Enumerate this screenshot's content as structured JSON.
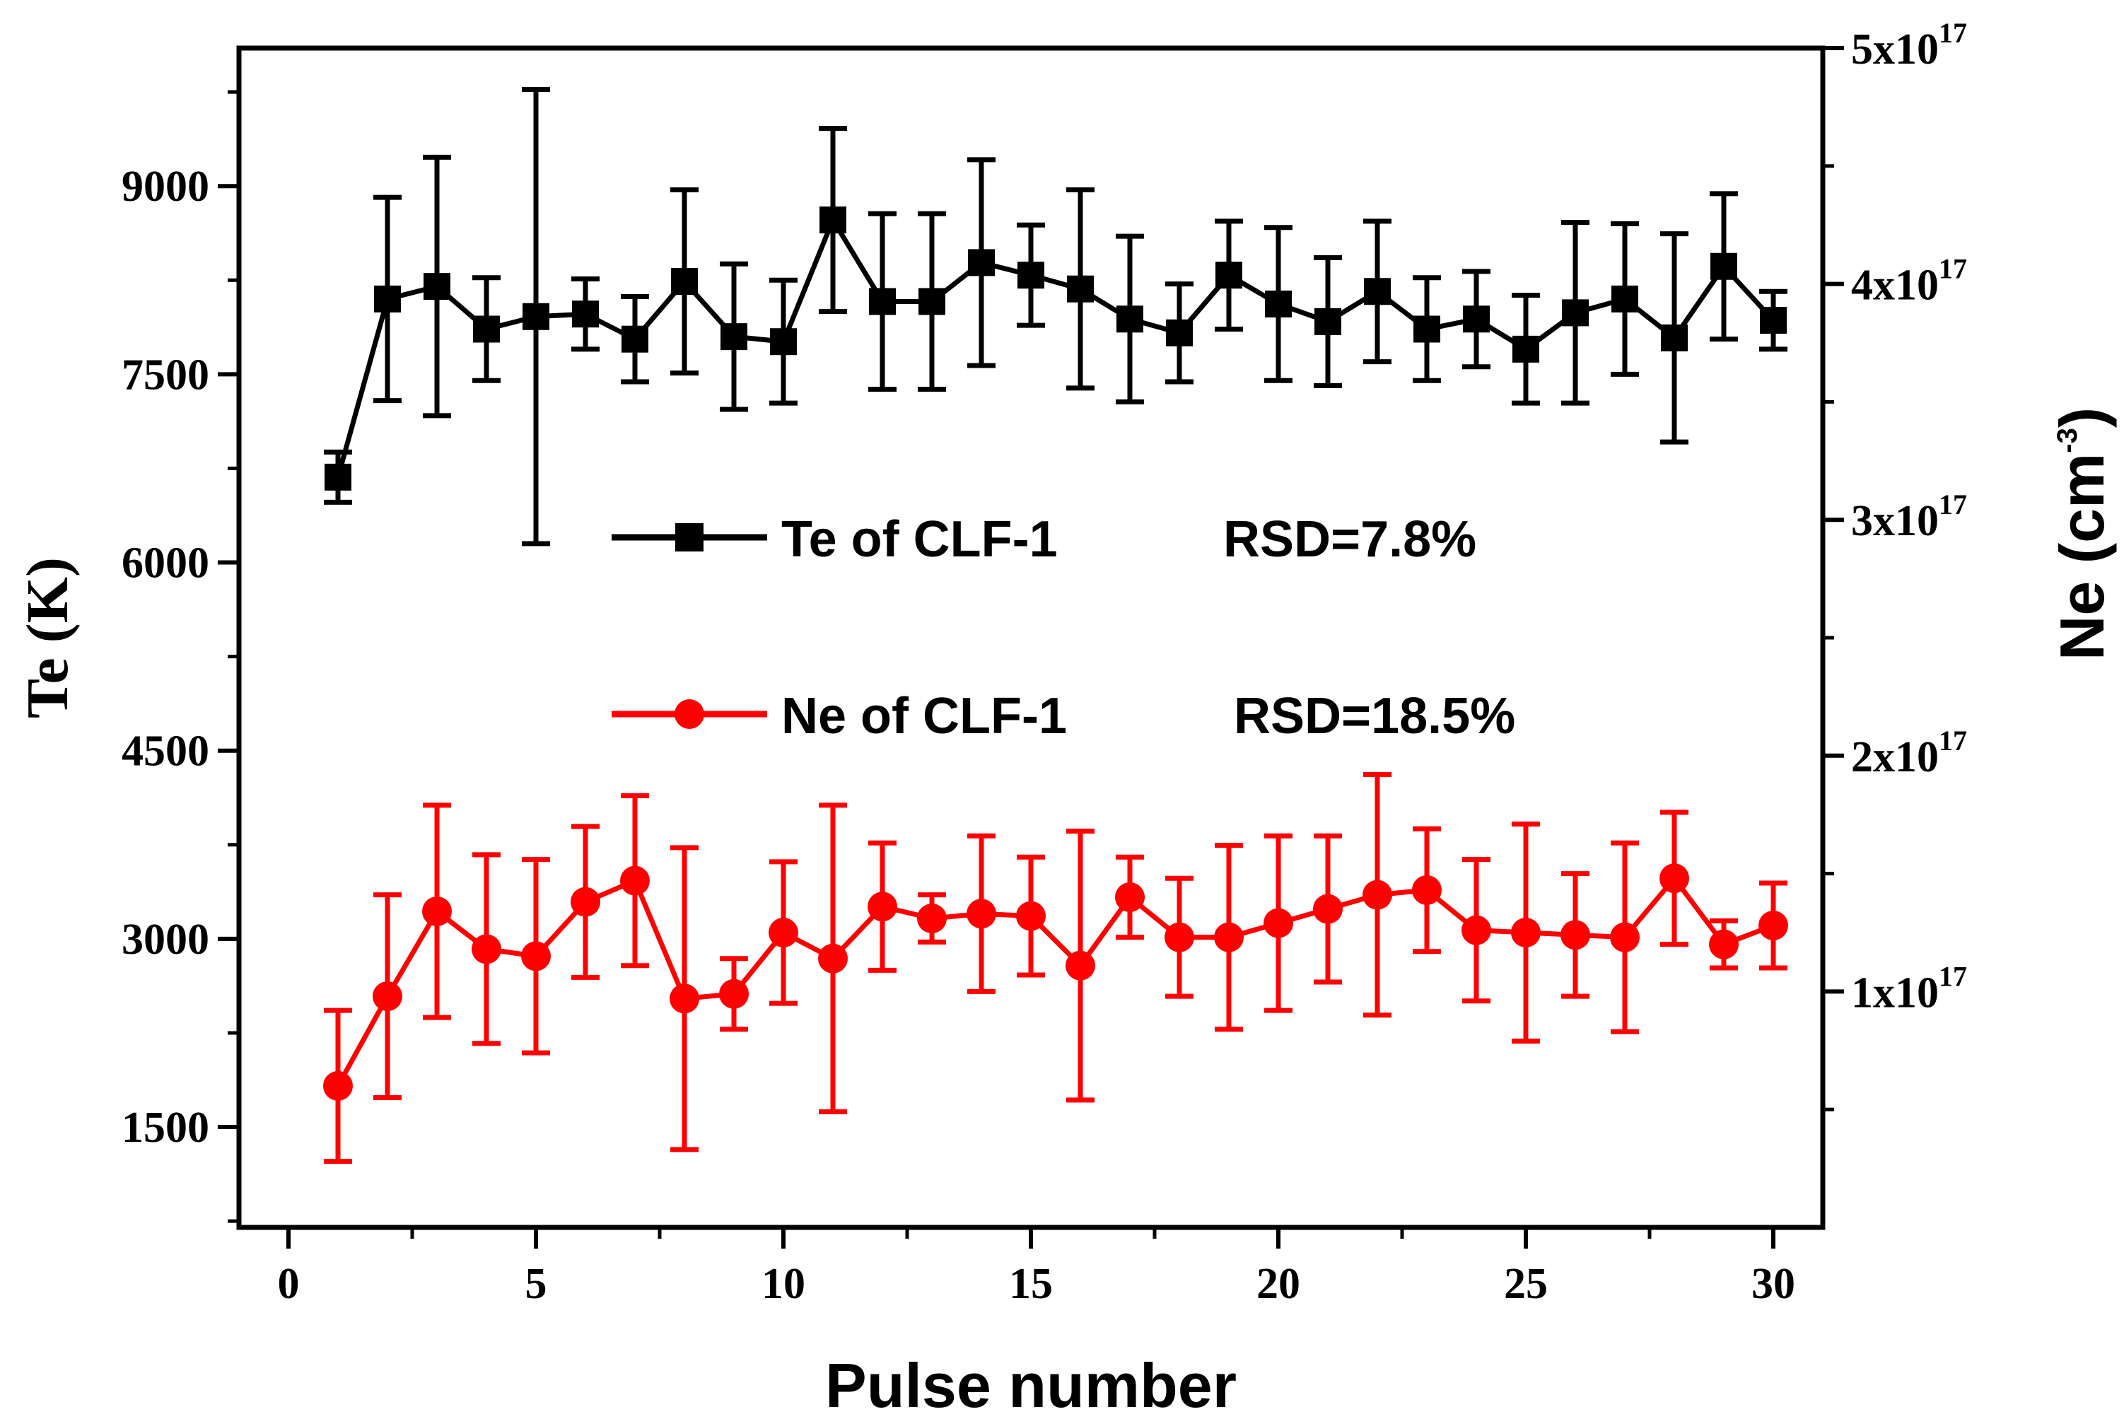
{
  "chart_data": {
    "type": "line",
    "x": [
      1,
      2,
      3,
      4,
      5,
      6,
      7,
      8,
      9,
      10,
      11,
      12,
      13,
      14,
      15,
      16,
      17,
      18,
      19,
      20,
      21,
      22,
      23,
      24,
      25,
      26,
      27,
      28,
      29,
      30
    ],
    "xlabel": "Pulse number",
    "xlim": [
      -1,
      31
    ],
    "xticks": [
      "0",
      "5",
      "10",
      "15",
      "20",
      "25",
      "30"
    ],
    "xtick_values": [
      0,
      5,
      10,
      15,
      20,
      25,
      30
    ],
    "ylabel_left": "Te (K)",
    "ylim_left": [
      700,
      10100
    ],
    "yticks_left": [
      "1500",
      "3000",
      "4500",
      "6000",
      "7500",
      "9000"
    ],
    "ytick_values_left": [
      1500,
      3000,
      4500,
      6000,
      7500,
      9000
    ],
    "ylabel_right": "Ne (cm",
    "ylabel_right_sup": "-3",
    "ylabel_right_close": ")",
    "ylim_right": [
      0,
      5e+17
    ],
    "yticks_right": [
      {
        "mantissa": "1x10",
        "exp": "17",
        "value": 1e+17
      },
      {
        "mantissa": "2x10",
        "exp": "17",
        "value": 2e+17
      },
      {
        "mantissa": "3x10",
        "exp": "17",
        "value": 3e+17
      },
      {
        "mantissa": "4x10",
        "exp": "17",
        "value": 4e+17
      },
      {
        "mantissa": "5x10",
        "exp": "17",
        "value": 5e+17
      }
    ],
    "series": [
      {
        "name": "Te of CLF-1",
        "rsd": "RSD=7.8%",
        "axis": "left",
        "color": "#000000",
        "marker": "square",
        "values": [
          6680,
          8100,
          8200,
          7860,
          7960,
          7980,
          7780,
          8240,
          7800,
          7760,
          8730,
          8080,
          8080,
          8390,
          8290,
          8180,
          7940,
          7830,
          8290,
          8060,
          7920,
          8160,
          7860,
          7940,
          7700,
          7990,
          8100,
          7790,
          8360,
          7930
        ],
        "errors": [
          200,
          810,
          1030,
          410,
          1810,
          280,
          340,
          730,
          580,
          490,
          730,
          700,
          700,
          820,
          400,
          790,
          660,
          390,
          430,
          610,
          510,
          560,
          410,
          380,
          430,
          720,
          600,
          830,
          580,
          230
        ]
      },
      {
        "name": "Ne of CLF-1",
        "rsd": "RSD=18.5%",
        "axis": "right",
        "color": "#ff0000",
        "marker": "circle",
        "values": [
          6e+16,
          9.8e+16,
          1.34e+17,
          1.18e+17,
          1.15e+17,
          1.38e+17,
          1.47e+17,
          9.7e+16,
          9.9e+16,
          1.25e+17,
          1.14e+17,
          1.36e+17,
          1.31e+17,
          1.33e+17,
          1.32e+17,
          1.11e+17,
          1.4e+17,
          1.23e+17,
          1.23e+17,
          1.29e+17,
          1.35e+17,
          1.41e+17,
          1.43e+17,
          1.26e+17,
          1.25e+17,
          1.24e+17,
          1.23e+17,
          1.48e+17,
          1.2e+17,
          1.28e+17
        ],
        "errors": [
          3.2e+16,
          4.3e+16,
          4.5e+16,
          4e+16,
          4.1e+16,
          3.2e+16,
          3.6e+16,
          6.4e+16,
          1.5e+16,
          3e+16,
          6.5e+16,
          2.7e+16,
          1e+16,
          3.3e+16,
          2.5e+16,
          5.7e+16,
          1.7e+16,
          2.5e+16,
          3.9e+16,
          3.7e+16,
          3.1e+16,
          5.1e+16,
          2.6e+16,
          3e+16,
          4.6e+16,
          2.6e+16,
          4e+16,
          2.8e+16,
          1e+16,
          1.8e+16
        ]
      }
    ]
  }
}
